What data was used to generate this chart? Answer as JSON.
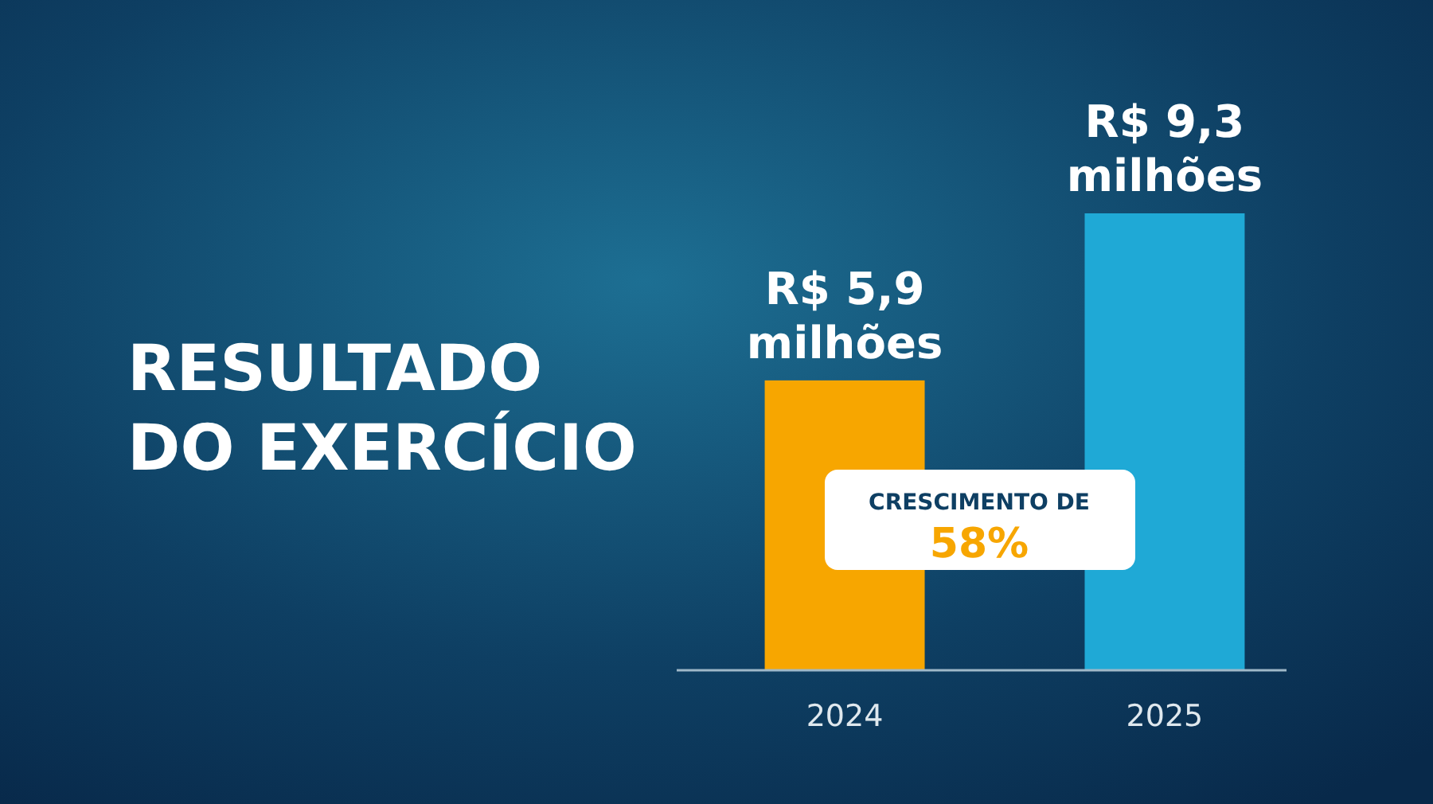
{
  "chart_data": {
    "type": "bar",
    "title": "RESULTADO DO EXERCÍCIO",
    "categories": [
      "2024",
      "2025"
    ],
    "values": [
      5.9,
      9.3
    ],
    "colors": [
      "#f7a600",
      "#1fa9d6"
    ],
    "value_labels": [
      "R$ 5,9 milhões",
      "R$ 9,3 milhões"
    ],
    "annotations": [
      "CRESCIMENTO DE 58%"
    ]
  }
}
